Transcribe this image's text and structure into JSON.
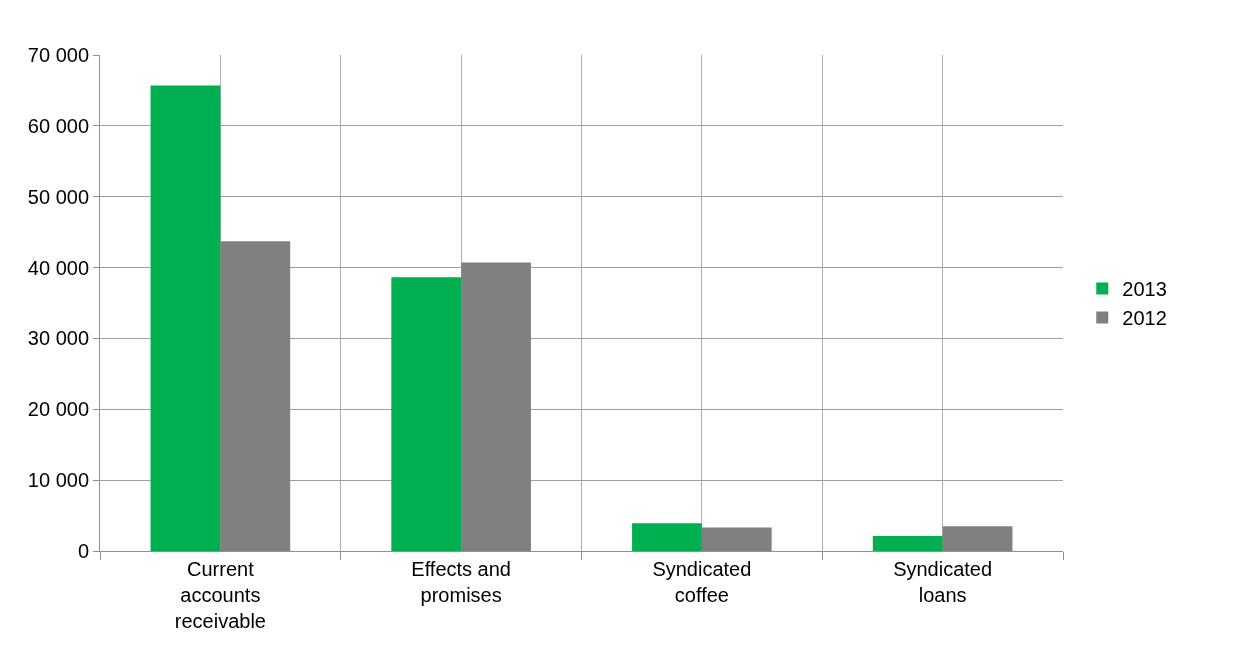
{
  "chart_data": {
    "type": "bar",
    "categories": [
      "Current accounts receivable",
      "Effects and promises",
      "Syndicated coffee",
      "Syndicated loans"
    ],
    "series": [
      {
        "name": "2013",
        "color": "#00b050",
        "values": [
          65700,
          38650,
          3900,
          2100
        ]
      },
      {
        "name": "2012",
        "color": "#808080",
        "values": [
          43700,
          40700,
          3300,
          3500
        ]
      }
    ],
    "ylim": [
      0,
      70000
    ],
    "yticks": [
      {
        "value": 0,
        "label": "0"
      },
      {
        "value": 10000,
        "label": "10 000"
      },
      {
        "value": 20000,
        "label": "20 000"
      },
      {
        "value": 30000,
        "label": "30 000"
      },
      {
        "value": 40000,
        "label": "40 000"
      },
      {
        "value": 50000,
        "label": "50 000"
      },
      {
        "value": 60000,
        "label": "60 000"
      },
      {
        "value": 70000,
        "label": "70 000"
      }
    ],
    "grid": true,
    "legend": "right"
  }
}
